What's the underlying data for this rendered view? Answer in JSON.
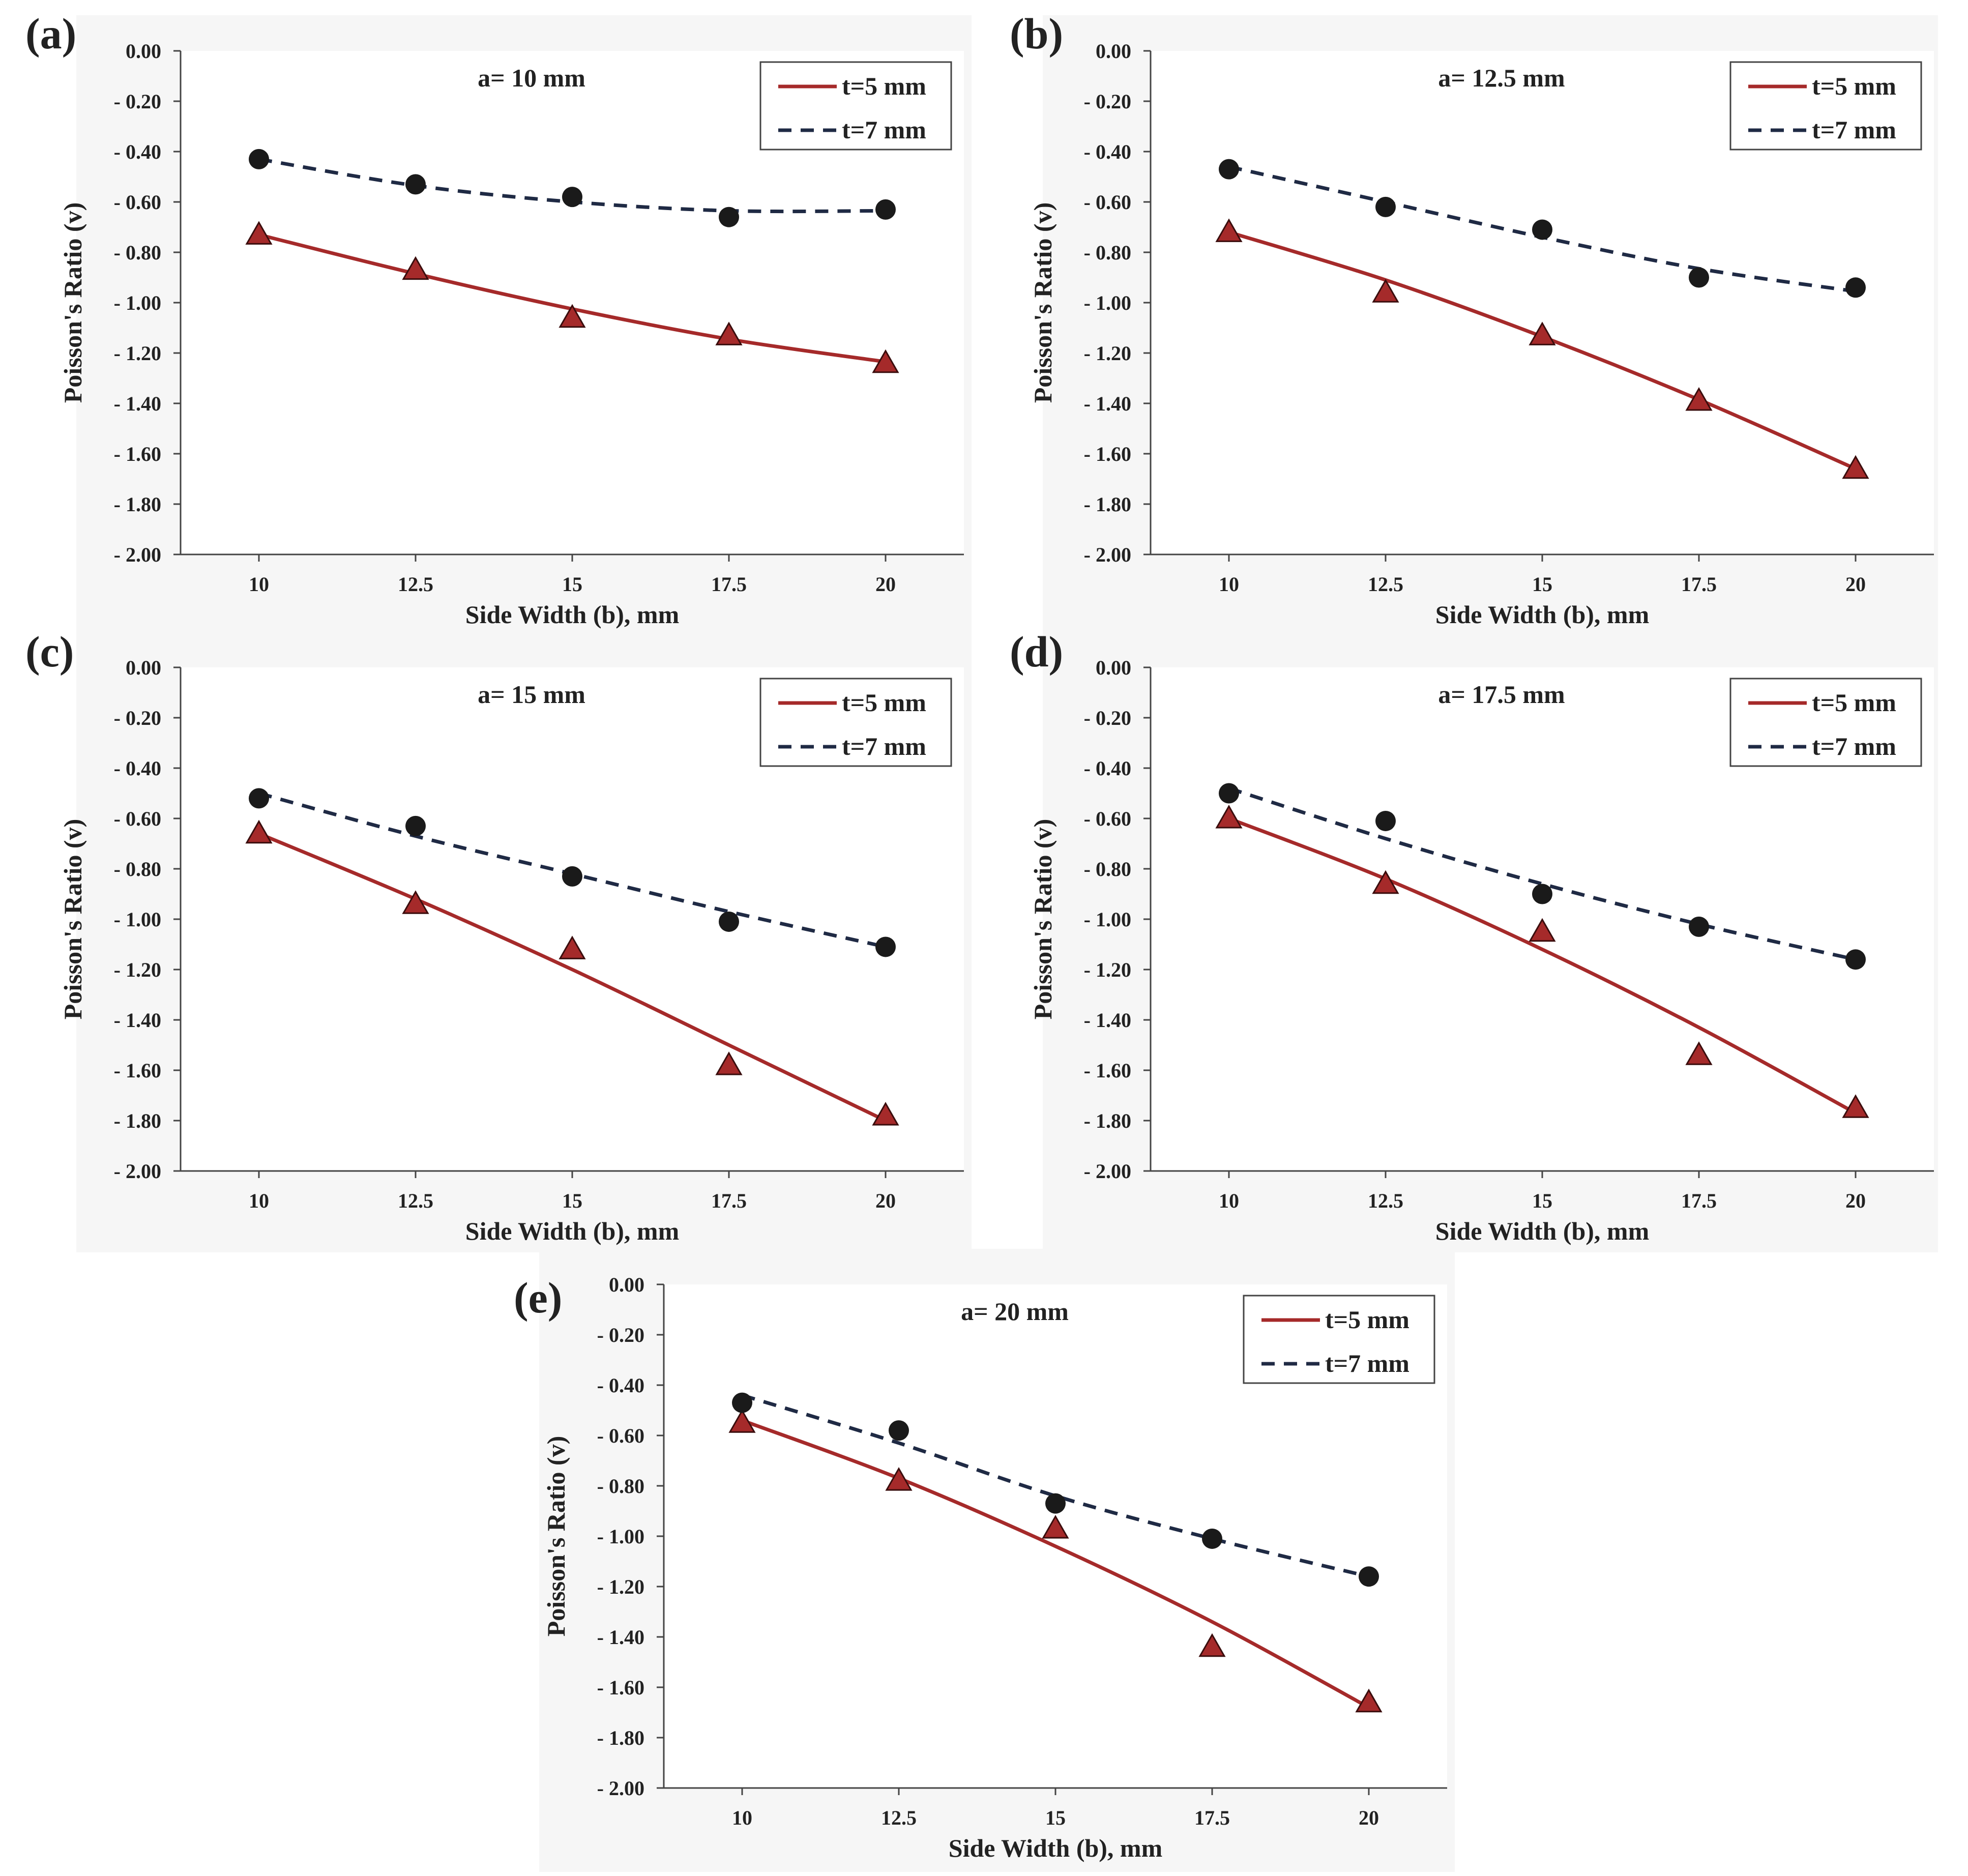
{
  "figure": {
    "colors": {
      "t5": "#a52a2a",
      "t7": "#1f2a44",
      "axis": "#444444",
      "marker_dot": "#1a1a1a",
      "background": "#f6f6f6"
    }
  },
  "chart_data": [
    {
      "panel": "(a)",
      "type": "scatter",
      "title": "a= 10 mm",
      "xlabel": "Side Width (b), mm",
      "ylabel": "Poisson's Ratio (v)",
      "categories": [
        "10",
        "12.5",
        "15",
        "17.5",
        "20"
      ],
      "x": [
        10,
        12.5,
        15,
        17.5,
        20
      ],
      "ylim": [
        -2.0,
        0.0
      ],
      "yticks": [
        "0.00",
        "- 0.20",
        "- 0.40",
        "- 0.60",
        "- 0.80",
        "- 1.00",
        "- 1.20",
        "- 1.40",
        "- 1.60",
        "- 1.80",
        "- 2.00"
      ],
      "legend_position": "top-right",
      "grid": false,
      "series": [
        {
          "name": "t=5 mm",
          "marker": "triangle",
          "line": "solid",
          "values": [
            -0.73,
            -0.87,
            -1.06,
            -1.13,
            -1.24
          ],
          "trend": [
            -0.73,
            -0.885,
            -1.025,
            -1.145,
            -1.235
          ]
        },
        {
          "name": "t=7 mm",
          "marker": "circle",
          "line": "dashed",
          "values": [
            -0.43,
            -0.53,
            -0.58,
            -0.66,
            -0.63
          ],
          "trend": [
            -0.43,
            -0.535,
            -0.6,
            -0.635,
            -0.635
          ]
        }
      ]
    },
    {
      "panel": "(b)",
      "type": "scatter",
      "title": "a= 12.5 mm",
      "xlabel": "Side Width (b), mm",
      "ylabel": "Poisson's Ratio (v)",
      "categories": [
        "10",
        "12.5",
        "15",
        "17.5",
        "20"
      ],
      "x": [
        10,
        12.5,
        15,
        17.5,
        20
      ],
      "ylim": [
        -2.0,
        0.0
      ],
      "yticks": [
        "0.00",
        "- 0.20",
        "- 0.40",
        "- 0.60",
        "- 0.80",
        "- 1.00",
        "- 1.20",
        "- 1.40",
        "- 1.60",
        "- 1.80",
        "- 2.00"
      ],
      "legend_position": "top-right",
      "grid": false,
      "series": [
        {
          "name": "t=5 mm",
          "marker": "triangle",
          "line": "solid",
          "values": [
            -0.72,
            -0.96,
            -1.13,
            -1.39,
            -1.66
          ],
          "trend": [
            -0.72,
            -0.91,
            -1.135,
            -1.385,
            -1.66
          ]
        },
        {
          "name": "t=7 mm",
          "marker": "circle",
          "line": "dashed",
          "values": [
            -0.47,
            -0.62,
            -0.71,
            -0.9,
            -0.94
          ],
          "trend": [
            -0.46,
            -0.6,
            -0.74,
            -0.865,
            -0.955
          ]
        }
      ]
    },
    {
      "panel": "(c)",
      "type": "scatter",
      "title": "a= 15 mm",
      "xlabel": "Side Width (b), mm",
      "ylabel": "Poisson's Ratio (v)",
      "categories": [
        "10",
        "12.5",
        "15",
        "17.5",
        "20"
      ],
      "x": [
        10,
        12.5,
        15,
        17.5,
        20
      ],
      "ylim": [
        -2.0,
        0.0
      ],
      "yticks": [
        "0.00",
        "- 0.20",
        "- 0.40",
        "- 0.60",
        "- 0.80",
        "- 1.00",
        "- 1.20",
        "- 1.40",
        "- 1.60",
        "- 1.80",
        "- 2.00"
      ],
      "legend_position": "top-right",
      "grid": false,
      "series": [
        {
          "name": "t=5 mm",
          "marker": "triangle",
          "line": "solid",
          "values": [
            -0.66,
            -0.94,
            -1.12,
            -1.58,
            -1.78
          ],
          "trend": [
            -0.66,
            -0.92,
            -1.2,
            -1.5,
            -1.8
          ]
        },
        {
          "name": "t=7 mm",
          "marker": "circle",
          "line": "dashed",
          "values": [
            -0.52,
            -0.63,
            -0.83,
            -1.01,
            -1.11
          ],
          "trend": [
            -0.5,
            -0.67,
            -0.82,
            -0.97,
            -1.11
          ]
        }
      ]
    },
    {
      "panel": "(d)",
      "type": "scatter",
      "title": "a= 17.5 mm",
      "xlabel": "Side Width (b), mm",
      "ylabel": "Poisson's Ratio (v)",
      "categories": [
        "10",
        "12.5",
        "15",
        "17.5",
        "20"
      ],
      "x": [
        10,
        12.5,
        15,
        17.5,
        20
      ],
      "ylim": [
        -2.0,
        0.0
      ],
      "yticks": [
        "0.00",
        "- 0.20",
        "- 0.40",
        "- 0.60",
        "- 0.80",
        "- 1.00",
        "- 1.20",
        "- 1.40",
        "- 1.60",
        "- 1.80",
        "- 2.00"
      ],
      "legend_position": "top-right",
      "grid": false,
      "series": [
        {
          "name": "t=5 mm",
          "marker": "triangle",
          "line": "solid",
          "values": [
            -0.6,
            -0.86,
            -1.05,
            -1.54,
            -1.75
          ],
          "trend": [
            -0.6,
            -0.84,
            -1.12,
            -1.43,
            -1.77
          ]
        },
        {
          "name": "t=7 mm",
          "marker": "circle",
          "line": "dashed",
          "values": [
            -0.5,
            -0.61,
            -0.9,
            -1.03,
            -1.16
          ],
          "trend": [
            -0.48,
            -0.68,
            -0.86,
            -1.02,
            -1.16
          ]
        }
      ]
    },
    {
      "panel": "(e)",
      "type": "scatter",
      "title": "a= 20 mm",
      "xlabel": "Side Width (b), mm",
      "ylabel": "Poisson's Ratio (v)",
      "categories": [
        "10",
        "12.5",
        "15",
        "17.5",
        "20"
      ],
      "x": [
        10,
        12.5,
        15,
        17.5,
        20
      ],
      "ylim": [
        -2.0,
        0.0
      ],
      "yticks": [
        "0.00",
        "- 0.20",
        "- 0.40",
        "- 0.60",
        "- 0.80",
        "- 1.00",
        "- 1.20",
        "- 1.40",
        "- 1.60",
        "- 1.80",
        "- 2.00"
      ],
      "legend_position": "top-right",
      "grid": false,
      "series": [
        {
          "name": "t=5 mm",
          "marker": "triangle",
          "line": "solid",
          "values": [
            -0.55,
            -0.78,
            -0.97,
            -1.44,
            -1.66
          ],
          "trend": [
            -0.54,
            -0.77,
            -1.04,
            -1.34,
            -1.68
          ]
        },
        {
          "name": "t=7 mm",
          "marker": "circle",
          "line": "dashed",
          "values": [
            -0.47,
            -0.58,
            -0.87,
            -1.01,
            -1.16
          ],
          "trend": [
            -0.44,
            -0.63,
            -0.84,
            -1.01,
            -1.16
          ]
        }
      ]
    }
  ]
}
